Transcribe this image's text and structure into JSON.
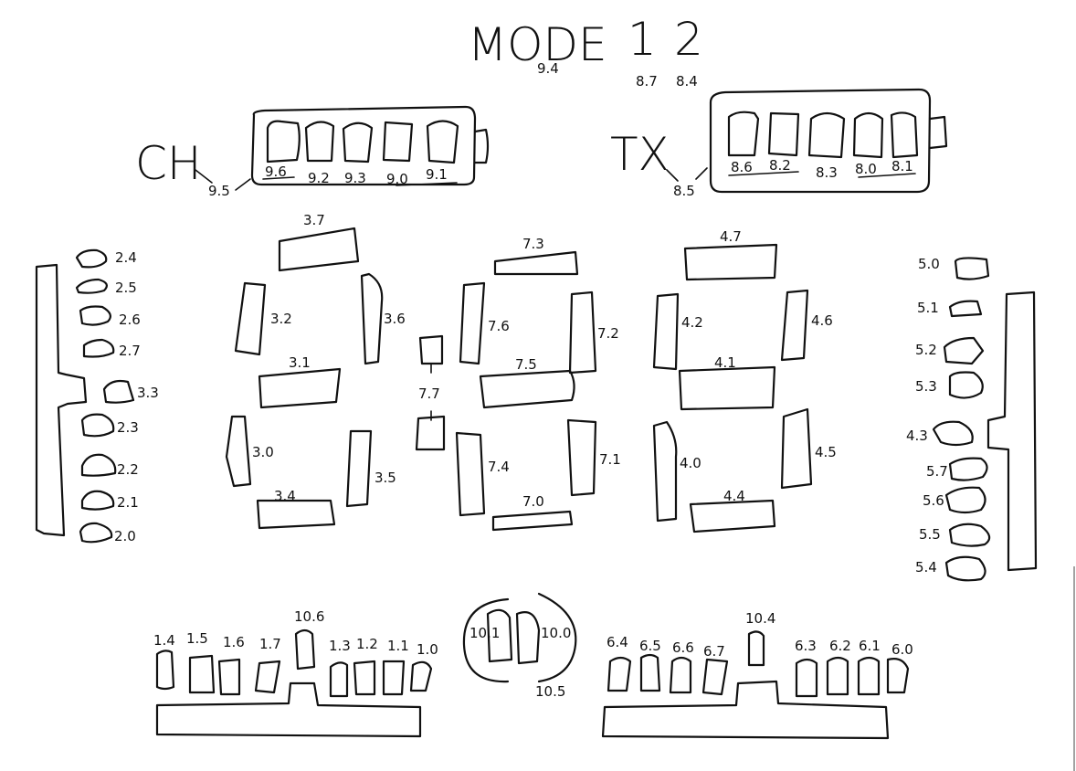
{
  "title": {
    "mode": "MODE",
    "mode_id": "9.4",
    "one": "1",
    "one_id": "8.7",
    "two": "2",
    "two_id": "8.4"
  },
  "ch": {
    "label": "CH",
    "label_id": "9.5",
    "cells": [
      "9.6",
      "9.2",
      "9.3",
      "9.0",
      "9.1"
    ]
  },
  "tx": {
    "label": "TX",
    "label_id": "8.5",
    "cells": [
      "8.6",
      "8.2",
      "8.3",
      "8.0",
      "8.1"
    ]
  },
  "left_column": [
    "2.4",
    "2.5",
    "2.6",
    "2.7",
    "3.3",
    "2.3",
    "2.2",
    "2.1",
    "2.0"
  ],
  "right_column": [
    "5.0",
    "5.1",
    "5.2",
    "5.3",
    "4.3",
    "5.7",
    "5.6",
    "5.5",
    "5.4"
  ],
  "digit1": {
    "a": "3.7",
    "f": "3.2",
    "b": "3.6",
    "g": "3.1",
    "e": "3.0",
    "c": "3.5",
    "d": "3.4"
  },
  "digit2": {
    "a": "7.3",
    "f": "7.6",
    "b": "7.2",
    "g": "7.5",
    "e": "7.4",
    "c": "7.1",
    "d": "7.0"
  },
  "digit3": {
    "a": "4.7",
    "f": "4.2",
    "b": "4.6",
    "g": "4.1",
    "e": "4.0",
    "c": "4.5",
    "d": "4.4"
  },
  "colon": "7.7",
  "bottom_left": {
    "cells": [
      "1.4",
      "1.5",
      "1.6",
      "1.7",
      "1.3",
      "1.2",
      "1.1",
      "1.0"
    ],
    "top_cell": "10.6"
  },
  "bottom_right": {
    "cells": [
      "6.4",
      "6.5",
      "6.6",
      "6.7",
      "6.3",
      "6.2",
      "6.1",
      "6.0"
    ],
    "top_cell": "10.4"
  },
  "center": {
    "left_arc": "10.1",
    "right_arc": "10.0",
    "bottom": "10.5"
  }
}
